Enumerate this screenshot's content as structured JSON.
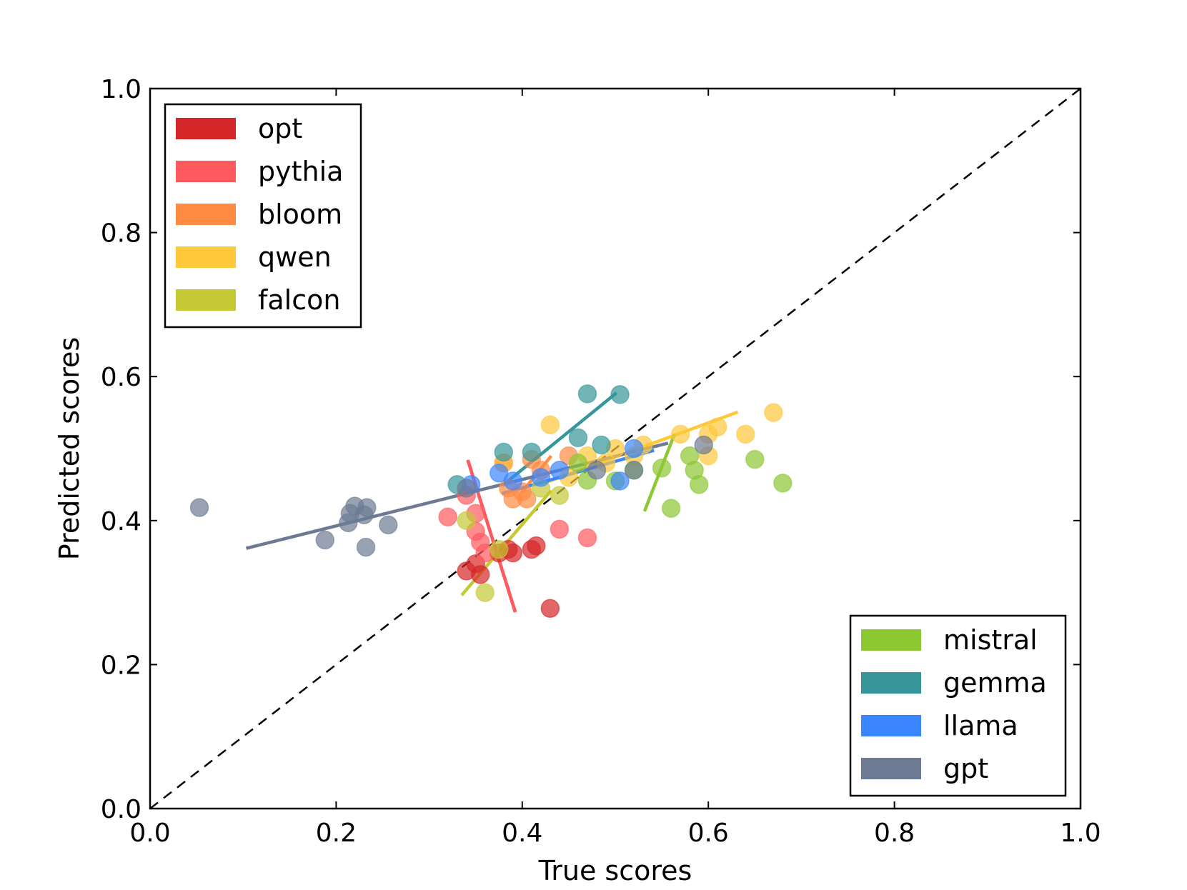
{
  "chart_data": {
    "type": "scatter",
    "title": "",
    "xlabel": "True scores",
    "ylabel": "Predicted scores",
    "xlim": [
      0.0,
      1.0
    ],
    "ylim": [
      0.0,
      1.0
    ],
    "xticks": [
      "0.0",
      "0.2",
      "0.4",
      "0.6",
      "0.8",
      "1.0"
    ],
    "yticks": [
      "0.0",
      "0.2",
      "0.4",
      "0.6",
      "0.8",
      "1.0"
    ],
    "grid": false,
    "reference_line": "y = x (dashed)",
    "legends": [
      {
        "placement": "upper-left",
        "entries": [
          "opt",
          "pythia",
          "bloom",
          "qwen",
          "falcon"
        ]
      },
      {
        "placement": "lower-right",
        "entries": [
          "mistral",
          "gemma",
          "llama",
          "gpt"
        ]
      }
    ],
    "series": [
      {
        "name": "opt",
        "color": "#d62728",
        "points": [
          [
            0.34,
            0.33
          ],
          [
            0.35,
            0.34
          ],
          [
            0.355,
            0.325
          ],
          [
            0.375,
            0.355
          ],
          [
            0.385,
            0.36
          ],
          [
            0.39,
            0.355
          ],
          [
            0.41,
            0.36
          ],
          [
            0.415,
            0.365
          ],
          [
            0.43,
            0.278
          ]
        ],
        "fit": [
          [
            0.342,
            0.482
          ],
          [
            0.392,
            0.275
          ]
        ]
      },
      {
        "name": "pythia",
        "color": "#ff5a5f",
        "points": [
          [
            0.32,
            0.405
          ],
          [
            0.34,
            0.435
          ],
          [
            0.35,
            0.41
          ],
          [
            0.35,
            0.385
          ],
          [
            0.355,
            0.37
          ],
          [
            0.36,
            0.355
          ],
          [
            0.44,
            0.388
          ],
          [
            0.47,
            0.376
          ],
          [
            0.38,
            0.48
          ]
        ],
        "fit": [
          [
            0.342,
            0.482
          ],
          [
            0.392,
            0.275
          ]
        ]
      },
      {
        "name": "bloom",
        "color": "#ff8c42",
        "points": [
          [
            0.385,
            0.445
          ],
          [
            0.39,
            0.43
          ],
          [
            0.4,
            0.44
          ],
          [
            0.405,
            0.43
          ],
          [
            0.41,
            0.485
          ],
          [
            0.42,
            0.47
          ],
          [
            0.45,
            0.49
          ]
        ],
        "fit": [
          [
            0.4,
            0.44
          ],
          [
            0.43,
            0.488
          ]
        ]
      },
      {
        "name": "qwen",
        "color": "#ffc83a",
        "points": [
          [
            0.38,
            0.48
          ],
          [
            0.43,
            0.533
          ],
          [
            0.45,
            0.46
          ],
          [
            0.47,
            0.49
          ],
          [
            0.49,
            0.48
          ],
          [
            0.5,
            0.5
          ],
          [
            0.52,
            0.49
          ],
          [
            0.53,
            0.505
          ],
          [
            0.57,
            0.52
          ],
          [
            0.6,
            0.49
          ],
          [
            0.6,
            0.52
          ],
          [
            0.64,
            0.52
          ],
          [
            0.67,
            0.55
          ],
          [
            0.61,
            0.53
          ]
        ],
        "fit": [
          [
            0.43,
            0.455
          ],
          [
            0.63,
            0.55
          ]
        ]
      },
      {
        "name": "falcon",
        "color": "#c5c934",
        "points": [
          [
            0.34,
            0.4
          ],
          [
            0.36,
            0.3
          ],
          [
            0.375,
            0.36
          ],
          [
            0.44,
            0.435
          ],
          [
            0.42,
            0.445
          ]
        ],
        "fit": [
          [
            0.336,
            0.298
          ],
          [
            0.43,
            0.44
          ]
        ]
      },
      {
        "name": "mistral",
        "color": "#8cc832",
        "points": [
          [
            0.46,
            0.48
          ],
          [
            0.47,
            0.456
          ],
          [
            0.5,
            0.455
          ],
          [
            0.52,
            0.47
          ],
          [
            0.55,
            0.473
          ],
          [
            0.56,
            0.417
          ],
          [
            0.58,
            0.49
          ],
          [
            0.585,
            0.47
          ],
          [
            0.59,
            0.45
          ],
          [
            0.65,
            0.485
          ],
          [
            0.68,
            0.452
          ]
        ],
        "fit": [
          [
            0.532,
            0.415
          ],
          [
            0.563,
            0.518
          ]
        ]
      },
      {
        "name": "gemma",
        "color": "#36969a",
        "points": [
          [
            0.33,
            0.45
          ],
          [
            0.38,
            0.495
          ],
          [
            0.41,
            0.495
          ],
          [
            0.46,
            0.515
          ],
          [
            0.47,
            0.576
          ],
          [
            0.485,
            0.505
          ],
          [
            0.505,
            0.575
          ]
        ],
        "fit": [
          [
            0.38,
            0.45
          ],
          [
            0.5,
            0.576
          ]
        ]
      },
      {
        "name": "llama",
        "color": "#3a86ff",
        "points": [
          [
            0.345,
            0.45
          ],
          [
            0.375,
            0.466
          ],
          [
            0.39,
            0.455
          ],
          [
            0.42,
            0.46
          ],
          [
            0.44,
            0.47
          ],
          [
            0.505,
            0.455
          ],
          [
            0.52,
            0.5
          ]
        ],
        "fit": [
          [
            0.38,
            0.438
          ],
          [
            0.54,
            0.497
          ]
        ]
      },
      {
        "name": "gpt",
        "color": "#6c7a93",
        "points": [
          [
            0.053,
            0.418
          ],
          [
            0.188,
            0.373
          ],
          [
            0.213,
            0.397
          ],
          [
            0.215,
            0.41
          ],
          [
            0.22,
            0.42
          ],
          [
            0.23,
            0.408
          ],
          [
            0.232,
            0.363
          ],
          [
            0.233,
            0.418
          ],
          [
            0.256,
            0.394
          ],
          [
            0.34,
            0.445
          ],
          [
            0.48,
            0.47
          ],
          [
            0.52,
            0.47
          ],
          [
            0.595,
            0.505
          ]
        ],
        "fit": [
          [
            0.105,
            0.362
          ],
          [
            0.555,
            0.507
          ]
        ]
      }
    ]
  }
}
